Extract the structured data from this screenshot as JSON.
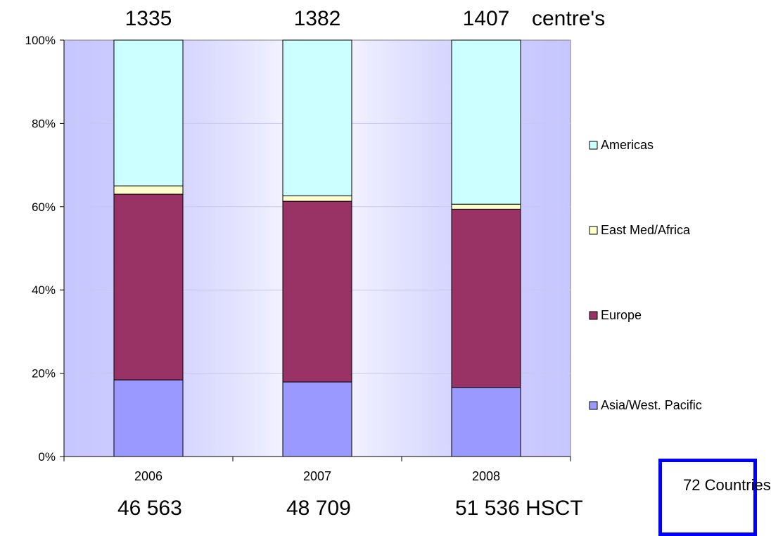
{
  "chart_data": {
    "type": "bar",
    "stacked": true,
    "percent": true,
    "categories": [
      "2006",
      "2007",
      "2008"
    ],
    "series": [
      {
        "name": "Asia/West. Pacific",
        "values": [
          18.4,
          17.9,
          16.6
        ],
        "color": "#9999ff"
      },
      {
        "name": "Europe",
        "values": [
          44.6,
          43.4,
          42.8
        ],
        "color": "#993366"
      },
      {
        "name": "East Med/Africa",
        "values": [
          2.0,
          1.3,
          1.2
        ],
        "color": "#ffffcc"
      },
      {
        "name": "Americas",
        "values": [
          35.0,
          37.4,
          39.4
        ],
        "color": "#ccffff"
      }
    ],
    "ylim": [
      0,
      100
    ],
    "yticks": [
      "0%",
      "20%",
      "40%",
      "60%",
      "80%",
      "100%"
    ],
    "legend": "right",
    "grid": true,
    "plot_background": [
      "#9999ff",
      "#ffffff"
    ],
    "top_labels": [
      "1335",
      "1382",
      "1407"
    ],
    "top_suffix": "centre's",
    "bottom_labels": [
      "46 563",
      "48 709",
      "51 536 HSCT"
    ]
  },
  "callout": {
    "text": "72 Countries",
    "border_color": "#0000ff"
  }
}
